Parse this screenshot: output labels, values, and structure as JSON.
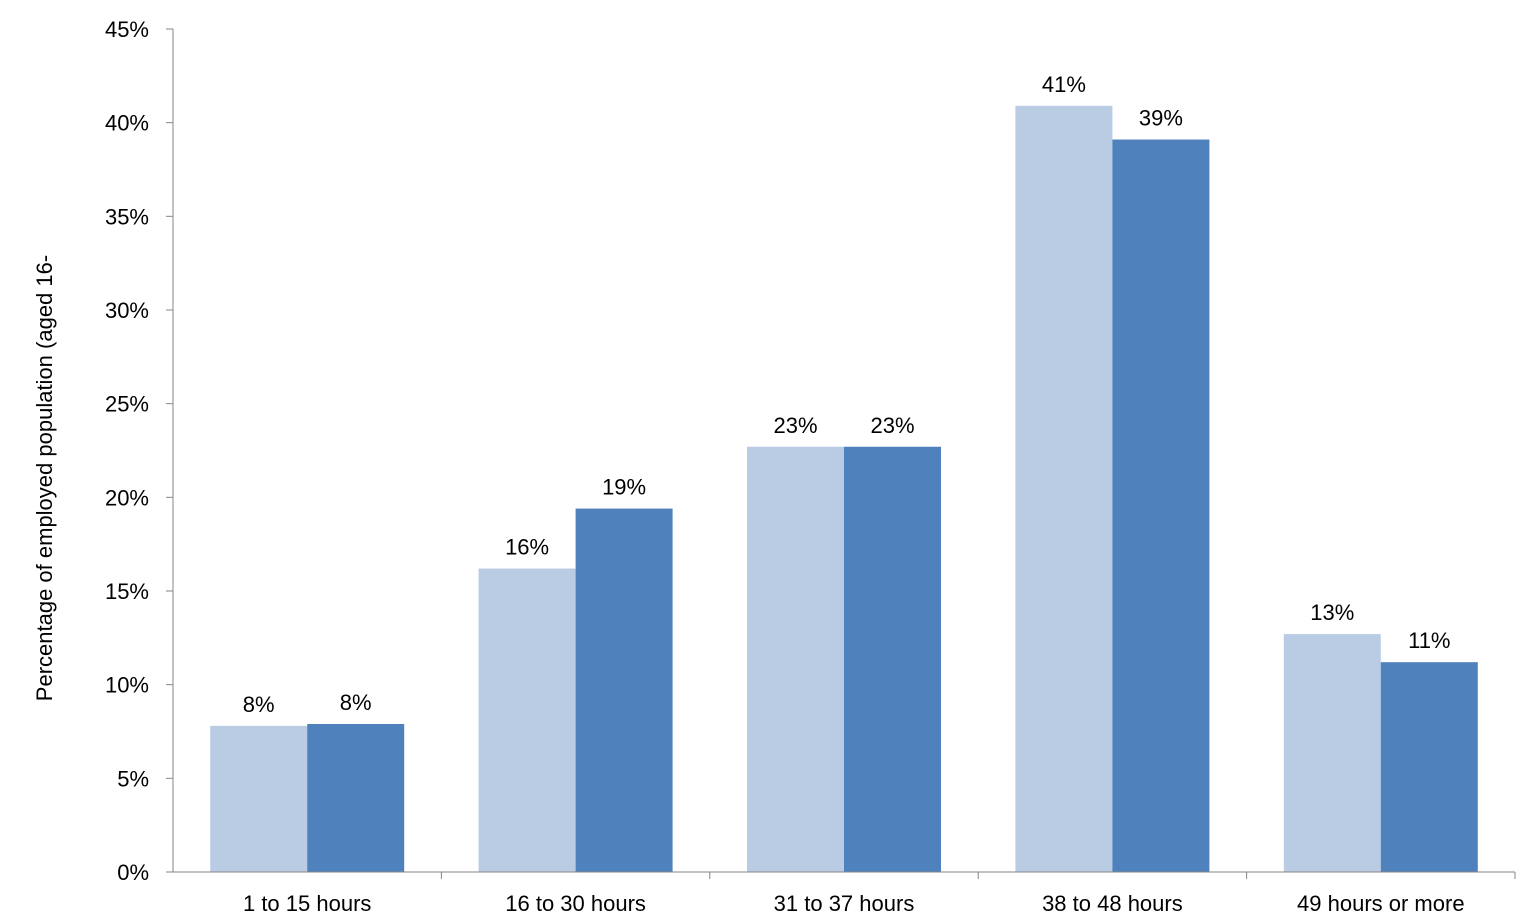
{
  "chart_data": {
    "type": "bar",
    "categories": [
      "1 to 15 hours",
      "16 to 30 hours",
      "31 to 37 hours",
      "38 to 48 hours",
      "49 hours or more"
    ],
    "series": [
      {
        "color": "#b9cce4",
        "values": [
          7.8,
          16.2,
          22.7,
          40.9,
          12.7
        ],
        "labels": [
          "8%",
          "16%",
          "23%",
          "41%",
          "13%"
        ]
      },
      {
        "color": "#4f81bd",
        "values": [
          7.9,
          19.4,
          22.7,
          39.1,
          11.2
        ],
        "labels": [
          "8%",
          "19%",
          "23%",
          "39%",
          "11%"
        ]
      }
    ],
    "ylabel": "Percentage of employed population (aged 16-",
    "xlabel": "",
    "ylim": [
      0,
      45
    ],
    "yticks": [
      "0%",
      "5%",
      "10%",
      "15%",
      "20%",
      "25%",
      "30%",
      "35%",
      "40%",
      "45%"
    ],
    "ytick_values": [
      0,
      5,
      10,
      15,
      20,
      25,
      30,
      35,
      40,
      45
    ],
    "grid": false,
    "legend": "none",
    "axis_color": "#868686"
  }
}
